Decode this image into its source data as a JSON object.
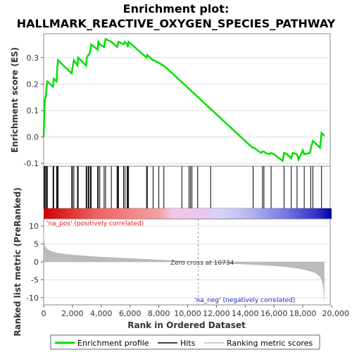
{
  "title_line1": "Enrichment plot:",
  "title_line2": "HALLMARK_REACTIVE_OXYGEN_SPECIES_PATHWAY",
  "colors": {
    "enrichment": "#00e000",
    "hits": "#000000",
    "metric_fill": "#bbbbbb",
    "pos_text": "#e02020",
    "neg_text": "#2020d0",
    "zero_line": "#999999",
    "grid": "#dddddd"
  },
  "chart_data": [
    {
      "type": "line",
      "name": "enrichment-profile",
      "title": "Enrichment plot: HALLMARK_REACTIVE_OXYGEN_SPECIES_PATHWAY",
      "ylabel": "Enrichment score (ES)",
      "xlim": [
        0,
        20000
      ],
      "ylim": [
        -0.11,
        0.39
      ],
      "yticks": [
        -0.1,
        0.0,
        0.1,
        0.2,
        0.3
      ],
      "ytick_labels": [
        "-0.1",
        "0.0",
        "0.1",
        "0.2",
        "0.3"
      ],
      "grid": true,
      "x": [
        0,
        40,
        80,
        150,
        200,
        260,
        650,
        700,
        900,
        950,
        1000,
        1950,
        2000,
        2100,
        2350,
        2400,
        2950,
        3000,
        3100,
        3150,
        3250,
        3300,
        3750,
        3800,
        3900,
        4200,
        4300,
        4700,
        5100,
        5150,
        5200,
        5550,
        5650,
        5800,
        5850,
        5900,
        7150,
        7200,
        7600,
        7650,
        8000,
        8300,
        8350,
        14500,
        14600,
        15100,
        15200,
        15300,
        15400,
        15700,
        15800,
        16000,
        16600,
        16700,
        16900,
        17200,
        17300,
        17600,
        17700,
        18000,
        18100,
        18500,
        18550,
        18700,
        19200,
        19300,
        19500
      ],
      "y": [
        0.0,
        0.08,
        0.14,
        0.15,
        0.19,
        0.21,
        0.19,
        0.22,
        0.21,
        0.26,
        0.29,
        0.24,
        0.26,
        0.29,
        0.27,
        0.3,
        0.27,
        0.3,
        0.31,
        0.31,
        0.33,
        0.35,
        0.33,
        0.36,
        0.35,
        0.34,
        0.37,
        0.36,
        0.34,
        0.35,
        0.36,
        0.35,
        0.36,
        0.35,
        0.34,
        0.36,
        0.3,
        0.31,
        0.29,
        0.29,
        0.28,
        0.27,
        0.27,
        -0.04,
        -0.04,
        -0.06,
        -0.055,
        -0.055,
        -0.06,
        -0.065,
        -0.06,
        -0.065,
        -0.09,
        -0.06,
        -0.065,
        -0.08,
        -0.06,
        -0.065,
        -0.085,
        -0.05,
        -0.065,
        -0.06,
        -0.045,
        -0.015,
        -0.04,
        0.015,
        0.005
      ]
    },
    {
      "type": "scatter",
      "name": "hits",
      "xlim": [
        0,
        20000
      ],
      "x": [
        40,
        80,
        150,
        200,
        260,
        650,
        700,
        900,
        950,
        1000,
        1950,
        2000,
        2100,
        2350,
        2400,
        2950,
        3000,
        3100,
        3150,
        3250,
        3300,
        3750,
        3800,
        3900,
        4200,
        4300,
        4700,
        5100,
        5150,
        5200,
        5550,
        5650,
        5800,
        5850,
        5900,
        7150,
        7200,
        7600,
        8000,
        8350,
        9600,
        10100,
        10200,
        10300,
        10700,
        11600,
        14550,
        15200,
        15300,
        15800,
        16700,
        17200,
        17600,
        18100,
        18550,
        18700,
        19300
      ]
    },
    {
      "type": "area",
      "name": "ranked-list-metric",
      "ylabel": "Ranked list metric (PreRanked)",
      "xlabel": "Rank in Ordered Dataset",
      "xlim": [
        0,
        20000
      ],
      "ylim": [
        -12,
        12
      ],
      "xticks": [
        0,
        2000,
        4000,
        6000,
        8000,
        10000,
        12000,
        14000,
        16000,
        18000,
        20000
      ],
      "xtick_labels": [
        "0",
        "2,000",
        "4,000",
        "6,000",
        "8,000",
        "10,000",
        "12,000",
        "14,000",
        "16,000",
        "18,000",
        "20,000"
      ],
      "yticks": [
        -10,
        -5,
        0,
        5,
        10
      ],
      "ytick_labels": [
        "-10",
        "-5",
        "0",
        "5",
        "10"
      ],
      "x": [
        0,
        30,
        100,
        200,
        400,
        700,
        1000,
        1500,
        2000,
        3000,
        4000,
        5000,
        6000,
        7000,
        8000,
        9000,
        10000,
        10734,
        11500,
        12500,
        13500,
        14500,
        15500,
        16500,
        17000,
        17500,
        18000,
        18500,
        18800,
        19000,
        19200,
        19300,
        19400,
        19450,
        19500
      ],
      "y": [
        11,
        6,
        4.5,
        3.8,
        3.2,
        2.8,
        2.5,
        2.2,
        2.0,
        1.7,
        1.4,
        1.2,
        1.0,
        0.8,
        0.6,
        0.4,
        0.2,
        0.0,
        -0.2,
        -0.4,
        -0.6,
        -0.8,
        -1.0,
        -1.3,
        -1.5,
        -1.8,
        -2.1,
        -2.6,
        -3.0,
        -3.5,
        -4.2,
        -5.0,
        -6.5,
        -8.5,
        -12
      ],
      "zero_cross": 10734,
      "annotations": {
        "pos": "'na_pos' (positively correlated)",
        "neg": "'na_neg' (negatively correlated)",
        "zero": "Zero cross at 10734"
      }
    }
  ],
  "legend": {
    "enrichment": "Enrichment profile",
    "hits": "Hits",
    "metric": "Ranking metric scores"
  }
}
